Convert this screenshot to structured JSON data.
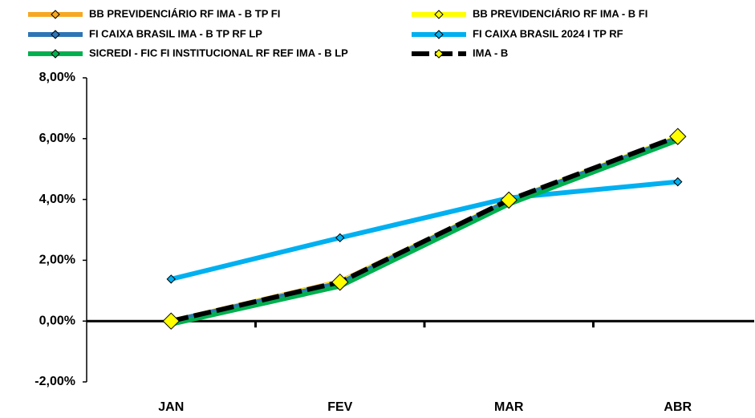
{
  "chart_data": {
    "type": "line",
    "categories": [
      "JAN",
      "FEV",
      "MAR",
      "ABR"
    ],
    "series": [
      {
        "name": "BB PREVIDENCIÁRIO RF IMA - B TP FI",
        "color": "#f7a823",
        "marker_color": "#f7a823",
        "values": [
          0,
          1.3,
          3.95,
          6.0
        ]
      },
      {
        "name": "BB PREVIDENCIÁRIO RF IMA - B FI",
        "color": "#ffff00",
        "marker_color": "#ffff00",
        "values": [
          0,
          1.28,
          3.97,
          6.05
        ]
      },
      {
        "name": "FI CAIXA BRASIL IMA - B TP RF LP",
        "color": "#2e75b6",
        "marker_color": "#2e75b6",
        "values": [
          0,
          1.25,
          3.95,
          6.02
        ]
      },
      {
        "name": "FI CAIXA BRASIL 2024 I TP RF",
        "color": "#00b0f0",
        "marker_color": "#00b0f0",
        "values": [
          1.38,
          2.74,
          4.05,
          4.58
        ]
      },
      {
        "name": "SICREDI - FIC FI INSTITUCIONAL RF REF IMA - B LP",
        "color": "#00b050",
        "marker_color": "#00b050",
        "values": [
          -0.1,
          1.15,
          3.85,
          5.95
        ]
      },
      {
        "name": "IMA - B",
        "color": "#000000",
        "marker_color": "#ffff00",
        "dashed": true,
        "values": [
          0,
          1.28,
          3.98,
          6.07
        ]
      }
    ],
    "ylim": [
      -2,
      8
    ],
    "yticks": [
      {
        "value": -2,
        "label": "-2,00%"
      },
      {
        "value": 0,
        "label": "0,00%"
      },
      {
        "value": 2,
        "label": "2,00%"
      },
      {
        "value": 4,
        "label": "4,00%"
      },
      {
        "value": 6,
        "label": "6,00%"
      },
      {
        "value": 8,
        "label": "8,00%"
      }
    ],
    "grid": false,
    "legend": "top"
  }
}
